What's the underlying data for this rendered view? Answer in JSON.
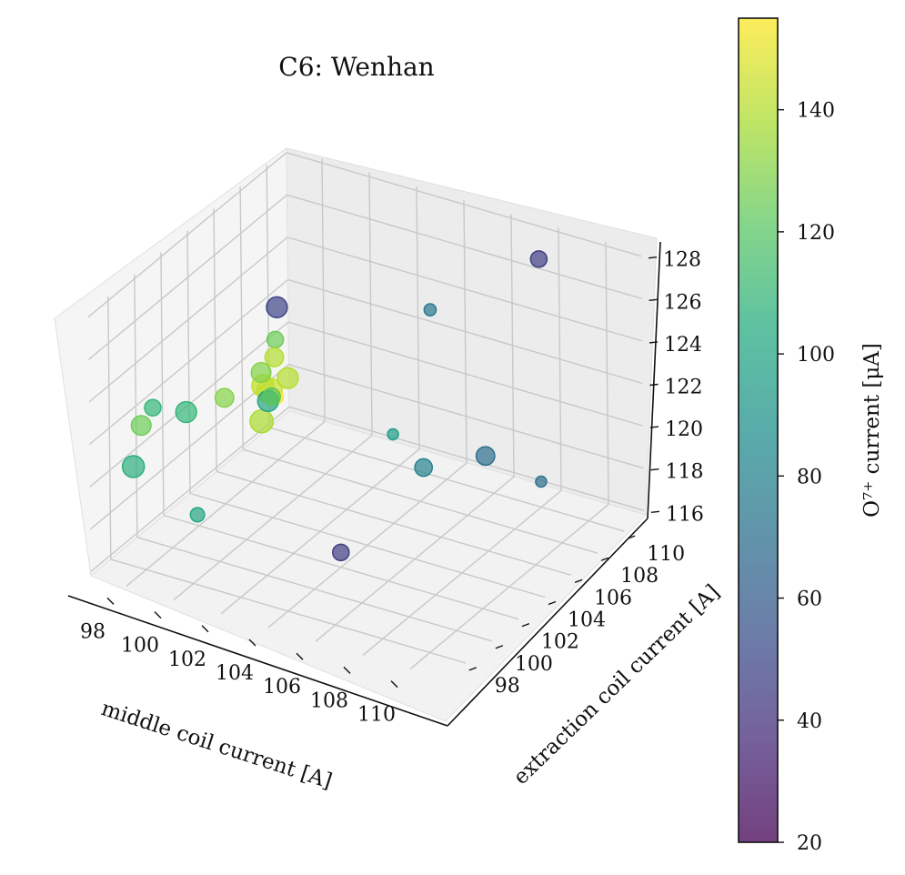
{
  "chart_data": {
    "type": "scatter",
    "projection": "3d",
    "title": "C6: Wenhan",
    "xlabel": "middle coil current [A]",
    "ylabel": "extraction coil current [A]",
    "zlabel": "",
    "colorbar_label": "O⁷⁺ current [μA]",
    "xlim": [
      96.5,
      111.5
    ],
    "ylim": [
      96.5,
      111.5
    ],
    "zlim": [
      115.8,
      128.2
    ],
    "x_ticks": [
      "98",
      "100",
      "102",
      "104",
      "106",
      "108",
      "110"
    ],
    "y_ticks": [
      "98",
      "100",
      "102",
      "104",
      "106",
      "108",
      "110"
    ],
    "z_ticks": [
      "116",
      "118",
      "120",
      "122",
      "124",
      "126",
      "128"
    ],
    "colorbar_ticks": [
      "20",
      "40",
      "60",
      "80",
      "100",
      "120",
      "140"
    ],
    "colorbar_range": [
      20,
      155
    ],
    "colormap": "viridis",
    "marker_alpha": 0.7,
    "grid": true,
    "points": [
      {
        "x": 108.0,
        "y": 110.0,
        "z": 127.5,
        "c": 45
      },
      {
        "x": 104.5,
        "y": 108.0,
        "z": 125.0,
        "c": 75
      },
      {
        "x": 98.0,
        "y": 108.0,
        "z": 123.0,
        "c": 48
      },
      {
        "x": 100.0,
        "y": 104.0,
        "z": 121.5,
        "c": 120
      },
      {
        "x": 99.0,
        "y": 105.0,
        "z": 121.8,
        "c": 130
      },
      {
        "x": 98.2,
        "y": 107.5,
        "z": 121.8,
        "c": 125
      },
      {
        "x": 99.0,
        "y": 106.0,
        "z": 122.0,
        "c": 140
      },
      {
        "x": 99.0,
        "y": 107.0,
        "z": 120.5,
        "c": 140
      },
      {
        "x": 98.5,
        "y": 106.5,
        "z": 120.0,
        "c": 145
      },
      {
        "x": 98.5,
        "y": 106.0,
        "z": 120.5,
        "c": 142
      },
      {
        "x": 99.0,
        "y": 105.0,
        "z": 119.5,
        "c": 138
      },
      {
        "x": 99.0,
        "y": 105.5,
        "z": 120.2,
        "c": 100
      },
      {
        "x": 97.5,
        "y": 102.0,
        "z": 121.0,
        "c": 110
      },
      {
        "x": 98.0,
        "y": 104.0,
        "z": 120.8,
        "c": 130
      },
      {
        "x": 97.0,
        "y": 99.5,
        "z": 121.5,
        "c": 125
      },
      {
        "x": 97.5,
        "y": 99.5,
        "z": 122.5,
        "c": 110
      },
      {
        "x": 97.5,
        "y": 98.0,
        "z": 120.5,
        "c": 105
      },
      {
        "x": 98.8,
        "y": 106.5,
        "z": 119.8,
        "c": 155
      },
      {
        "x": 104.0,
        "y": 106.0,
        "z": 120.0,
        "c": 95
      },
      {
        "x": 106.5,
        "y": 108.5,
        "z": 118.5,
        "c": 70
      },
      {
        "x": 105.0,
        "y": 106.5,
        "z": 118.5,
        "c": 80
      },
      {
        "x": 108.0,
        "y": 110.0,
        "z": 117.0,
        "c": 70
      },
      {
        "x": 104.0,
        "y": 102.0,
        "z": 116.5,
        "c": 45
      },
      {
        "x": 98.5,
        "y": 101.0,
        "z": 117.0,
        "c": 100
      }
    ],
    "sizes": [
      1,
      0.6,
      1.4,
      1.1,
      1.3,
      1.0,
      1.2,
      1.4,
      1.8,
      1.5,
      1.6,
      1.4,
      1.4,
      1.2,
      1.3,
      1.0,
      1.5,
      0.7,
      0.5,
      1.2,
      1.1,
      0.5,
      1.0,
      0.8
    ]
  }
}
